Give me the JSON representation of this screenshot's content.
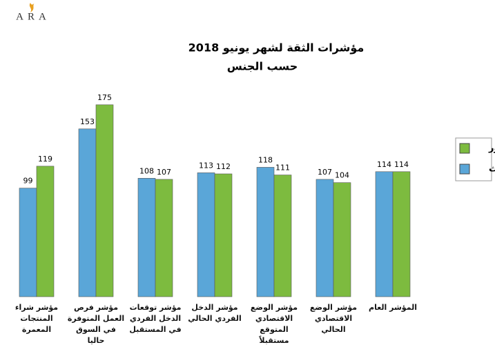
{
  "logo": "ARA",
  "chart_data": {
    "type": "bar",
    "title": "مؤشرات الثقة لشهر يونيو 2018",
    "subtitle": "حسب الجنس",
    "categories": [
      "مؤشر شراء المنتجات المعمرة",
      "مؤشر فرص العمل المتوفرة في السوق حاليا",
      "مؤشر توقعات الدخل الفردي في المستقبل",
      "مؤشر الدخل الفردي الحالي",
      "مؤشر الوضع الاقتصادي المتوقع مستقبلاً",
      "مؤشر الوضع الاقتصادي الحالي",
      "المؤشر العام"
    ],
    "series": [
      {
        "name": "إناث",
        "color": "#5aa6d8",
        "values": [
          99,
          153,
          108,
          113,
          118,
          107,
          114
        ]
      },
      {
        "name": "ذكور",
        "color": "#7dbb3f",
        "values": [
          119,
          175,
          107,
          112,
          111,
          104,
          114
        ]
      }
    ],
    "ylim": [
      0,
      190
    ]
  }
}
